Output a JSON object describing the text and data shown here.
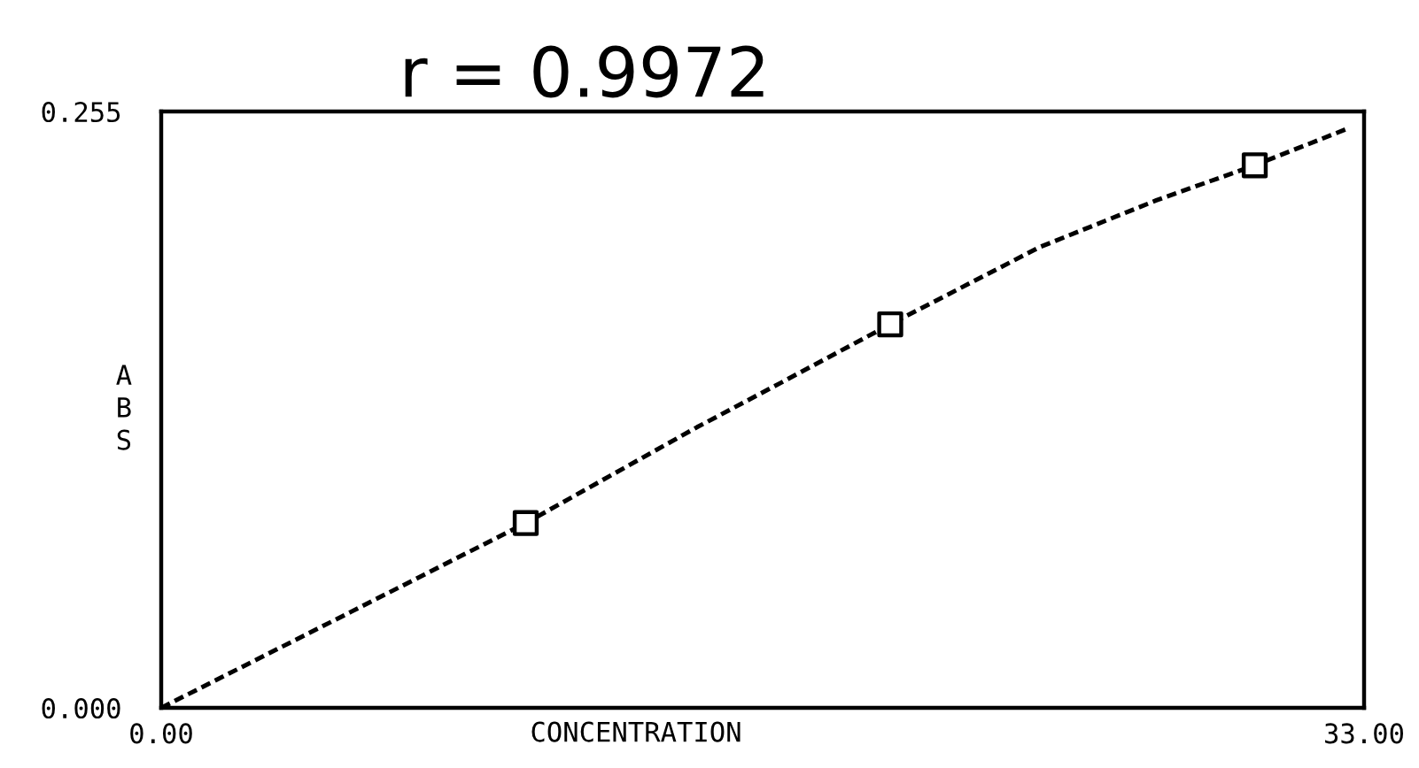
{
  "chart_data": {
    "type": "line",
    "title": "r = 0.9972",
    "xlabel": "CONCENTRATION",
    "ylabel": "ABS",
    "xlim": [
      0,
      33
    ],
    "ylim": [
      0,
      0.255
    ],
    "xticks": [
      {
        "value": 0,
        "label": "0.00"
      },
      {
        "value": 33,
        "label": "33.00"
      }
    ],
    "yticks": [
      {
        "value": 0,
        "label": "0.000"
      },
      {
        "value": 0.255,
        "label": "0.255"
      }
    ],
    "series": [
      {
        "color": "#000000",
        "line_style": "dashed",
        "marker": "none",
        "x": [
          0,
          5.2,
          10,
          14.7,
          17,
          20,
          24.1,
          27.3,
          30,
          32.6
        ],
        "values": [
          0,
          0.041,
          0.079,
          0.12,
          0.139,
          0.164,
          0.197,
          0.217,
          0.232,
          0.248
        ]
      },
      {
        "type": "scatter",
        "color": "#000000",
        "marker": "square",
        "x": [
          10,
          20,
          30
        ],
        "values": [
          0.079,
          0.164,
          0.232
        ]
      }
    ]
  }
}
